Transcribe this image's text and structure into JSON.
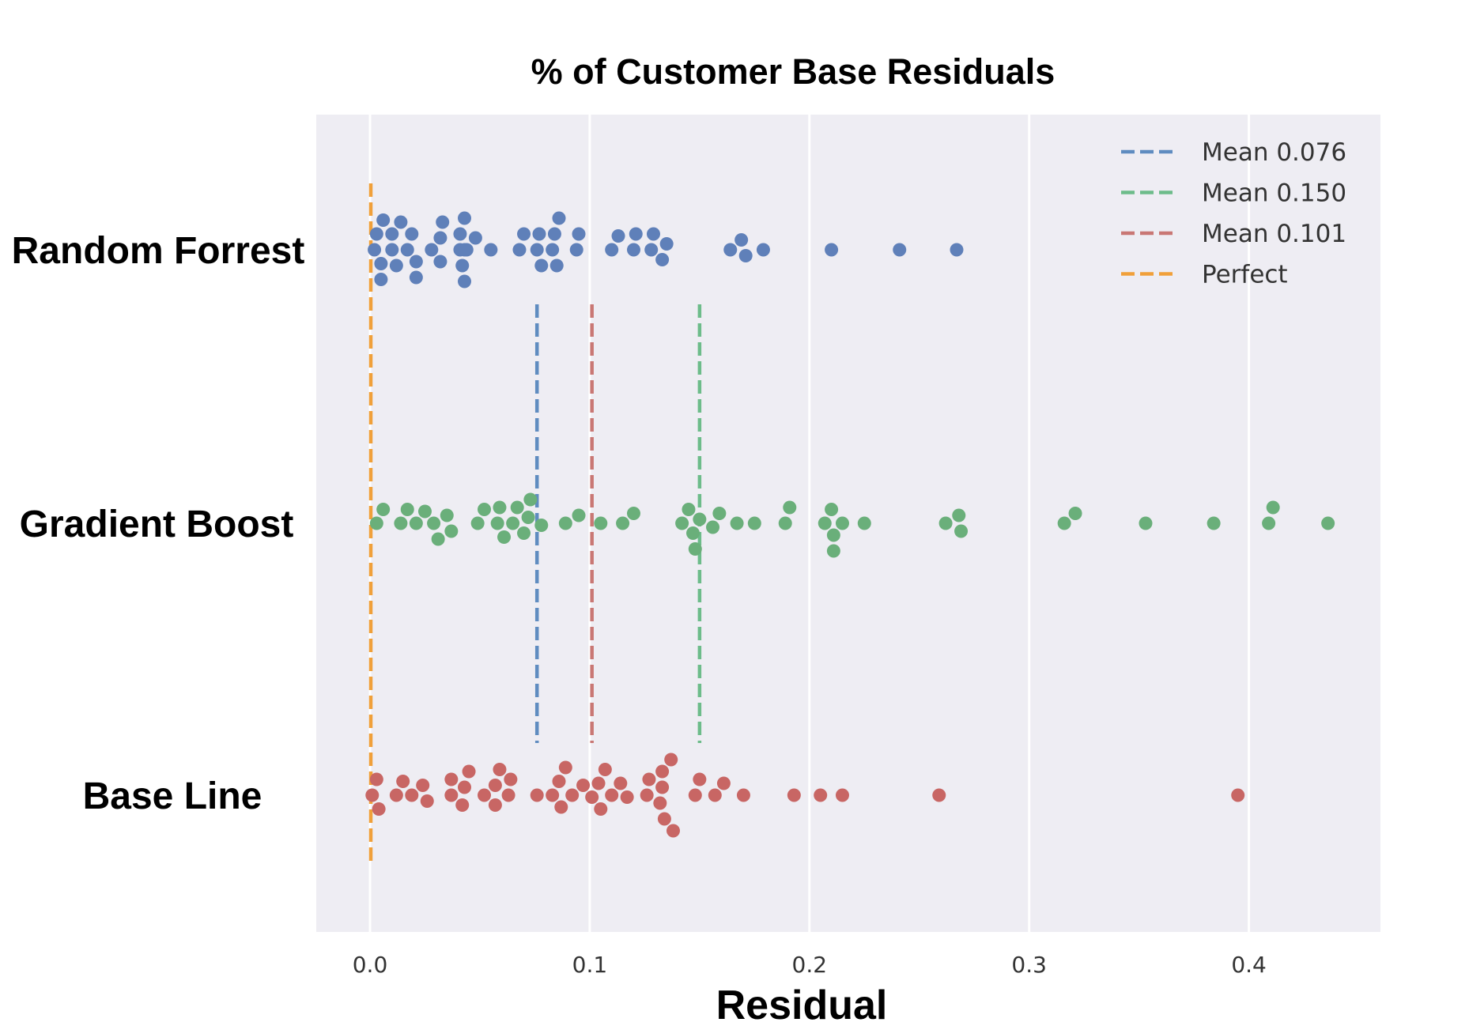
{
  "chart_data": {
    "type": "scatter",
    "title": "% of Customer Base Residuals",
    "xlabel": "Residual",
    "ylabel": "",
    "xlim": [
      -0.025,
      0.46
    ],
    "xticks": [
      0.0,
      0.1,
      0.2,
      0.3,
      0.4
    ],
    "tick_labels": [
      "0.0",
      "0.1",
      "0.2",
      "0.3",
      "0.4"
    ],
    "grid": true,
    "background": "#eeedf3",
    "legend_position": "top-right",
    "categories": [
      "Random Forrest",
      "Gradient Boost",
      "Base Line"
    ],
    "series": [
      {
        "category": "Random Forrest",
        "color": "#5f80b9",
        "values": [
          0.002,
          0.003,
          0.005,
          0.005,
          0.006,
          0.01,
          0.01,
          0.012,
          0.014,
          0.017,
          0.019,
          0.021,
          0.021,
          0.028,
          0.032,
          0.032,
          0.033,
          0.041,
          0.041,
          0.042,
          0.043,
          0.043,
          0.043,
          0.044,
          0.048,
          0.055,
          0.068,
          0.07,
          0.076,
          0.077,
          0.078,
          0.083,
          0.084,
          0.085,
          0.086,
          0.094,
          0.095,
          0.11,
          0.113,
          0.12,
          0.121,
          0.128,
          0.129,
          0.133,
          0.135,
          0.164,
          0.169,
          0.171,
          0.179,
          0.21,
          0.241,
          0.267
        ]
      },
      {
        "category": "Gradient Boost",
        "color": "#6aaf7a",
        "values": [
          0.003,
          0.006,
          0.014,
          0.017,
          0.021,
          0.025,
          0.029,
          0.031,
          0.035,
          0.037,
          0.049,
          0.052,
          0.058,
          0.059,
          0.061,
          0.065,
          0.067,
          0.07,
          0.072,
          0.073,
          0.078,
          0.089,
          0.095,
          0.105,
          0.115,
          0.12,
          0.142,
          0.145,
          0.147,
          0.148,
          0.15,
          0.156,
          0.159,
          0.167,
          0.175,
          0.189,
          0.191,
          0.207,
          0.21,
          0.211,
          0.211,
          0.215,
          0.225,
          0.262,
          0.268,
          0.269,
          0.316,
          0.321,
          0.353,
          0.384,
          0.409,
          0.411,
          0.436
        ]
      },
      {
        "category": "Base Line",
        "color": "#c86664",
        "values": [
          0.001,
          0.003,
          0.004,
          0.012,
          0.015,
          0.019,
          0.024,
          0.026,
          0.037,
          0.037,
          0.042,
          0.043,
          0.045,
          0.052,
          0.057,
          0.057,
          0.059,
          0.063,
          0.064,
          0.076,
          0.083,
          0.086,
          0.087,
          0.089,
          0.092,
          0.097,
          0.101,
          0.104,
          0.105,
          0.107,
          0.11,
          0.114,
          0.117,
          0.126,
          0.127,
          0.132,
          0.133,
          0.133,
          0.134,
          0.137,
          0.138,
          0.148,
          0.15,
          0.157,
          0.161,
          0.17,
          0.193,
          0.205,
          0.215,
          0.259,
          0.395
        ]
      }
    ],
    "lines": [
      {
        "label": "Mean 0.076",
        "x": 0.076,
        "color": "#5f8cc0",
        "style": "dashed"
      },
      {
        "label": "Mean 0.150",
        "x": 0.15,
        "color": "#6dbc8a",
        "style": "dashed"
      },
      {
        "label": "Mean 0.101",
        "x": 0.101,
        "color": "#c97774",
        "style": "dashed"
      },
      {
        "label": "Perfect",
        "x": 0.0,
        "color": "#f0a03a",
        "style": "dashed"
      }
    ]
  }
}
